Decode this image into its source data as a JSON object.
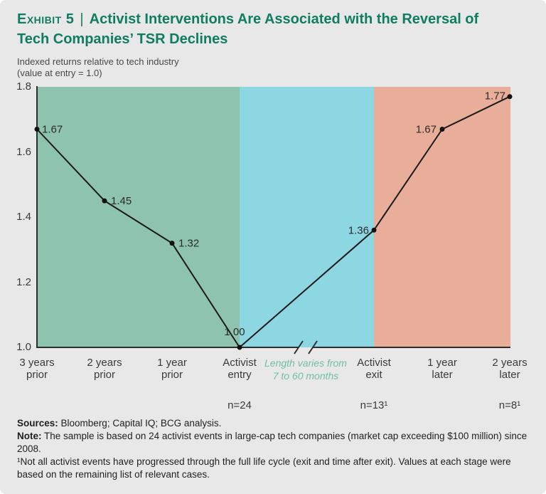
{
  "header": {
    "exhibit_label": "Exhibit 5",
    "separator": "|",
    "title_line1": "Activist Interventions Are Associated with the Reversal of",
    "title_line2": "Tech Companies’ TSR Declines",
    "subtitle_line1": "Indexed returns relative to tech industry",
    "subtitle_line2": "(value at entry = 1.0)"
  },
  "colors": {
    "title_green": "#0f7e5e",
    "break_note_green": "#6fbfa5",
    "background_gray": "#e9e8e8",
    "line_black": "#1a1a1a",
    "axis_gray": "#2e2e2e",
    "phase_green": "#8ec3ad",
    "phase_blue": "#8dd7e2",
    "phase_salmon": "#e9ae9a"
  },
  "chart_data": {
    "type": "line",
    "title": "",
    "xlabel": "",
    "ylabel": "Indexed returns relative to tech industry (value at entry = 1.0)",
    "categories": [
      "3 years prior",
      "2 years prior",
      "1 year prior",
      "Activist entry",
      "Activist exit",
      "1 year later",
      "2 years later"
    ],
    "values": [
      1.67,
      1.45,
      1.32,
      1.0,
      1.36,
      1.67,
      1.77
    ],
    "point_labels": [
      "1.67",
      "1.45",
      "1.32",
      "1.00",
      "1.36",
      "1.67",
      "1.77"
    ],
    "ylim": [
      1.0,
      1.8
    ],
    "yticks": [
      1.8,
      1.6,
      1.4,
      1.2,
      1.0
    ],
    "grid": false,
    "legend_position": "none",
    "phases": [
      {
        "span": [
          0,
          3
        ],
        "color": "#8ec3ad"
      },
      {
        "span": [
          3,
          4
        ],
        "color": "#8dd7e2"
      },
      {
        "span": [
          4,
          6
        ],
        "color": "#e9ae9a"
      }
    ],
    "axis_break": {
      "note": "Length varies from 7 to 60 months",
      "between": [
        "Activist entry",
        "Activist exit"
      ]
    },
    "sample_sizes": [
      {
        "category": "Activist entry",
        "label": "n=24"
      },
      {
        "category": "Activist exit",
        "label": "n=13¹"
      },
      {
        "category": "2 years later",
        "label": "n=8¹"
      }
    ]
  },
  "footer": {
    "lines": [
      {
        "bold": "Sources:",
        "text": " Bloomberg; Capital IQ; BCG analysis."
      },
      {
        "bold": "Note:",
        "text": " The sample is based on 24 activist events in large-cap tech companies (market cap exceeding $100 million) since 2008."
      },
      {
        "bold": "",
        "text": "¹Not all activist events have progressed through the full life cycle (exit and time after exit). Values at each stage were based on the remaining list of relevant cases."
      }
    ]
  }
}
